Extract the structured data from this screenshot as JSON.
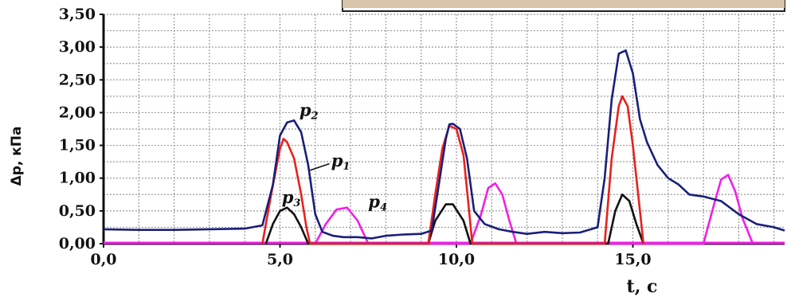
{
  "chart_data": {
    "type": "line",
    "title": "",
    "xlabel": "t, с",
    "ylabel": "Δp, кПа",
    "xlim": [
      0,
      19.3
    ],
    "ylim": [
      0,
      3.5
    ],
    "x_tick_labels": [
      "0,0",
      "5,0",
      "10,0",
      "15,0"
    ],
    "x_tick_values": [
      0,
      5,
      10,
      15
    ],
    "y_tick_labels": [
      "0,00",
      "0,50",
      "1,00",
      "1,50",
      "2,00",
      "2,50",
      "3,00",
      "3,50"
    ],
    "y_tick_values": [
      0,
      0.5,
      1.0,
      1.5,
      2.0,
      2.5,
      3.0,
      3.5
    ],
    "grid": true,
    "series": [
      {
        "name": "p2",
        "label_main": "p",
        "label_sub": "2",
        "color": "#1a1f7a",
        "x": [
          0,
          1,
          2,
          3,
          4,
          4.5,
          4.8,
          5.0,
          5.2,
          5.4,
          5.6,
          5.8,
          6.0,
          6.2,
          6.5,
          6.8,
          7.2,
          7.6,
          8.0,
          8.5,
          9.0,
          9.3,
          9.5,
          9.7,
          9.8,
          9.9,
          10.1,
          10.3,
          10.5,
          10.8,
          11.2,
          11.6,
          12.0,
          12.5,
          13.0,
          13.5,
          14.0,
          14.2,
          14.4,
          14.6,
          14.8,
          15.0,
          15.2,
          15.4,
          15.7,
          16.0,
          16.3,
          16.6,
          17.0,
          17.5,
          18.0,
          18.5,
          19.0,
          19.3
        ],
        "y": [
          0.22,
          0.21,
          0.21,
          0.22,
          0.23,
          0.28,
          0.9,
          1.65,
          1.85,
          1.88,
          1.7,
          1.2,
          0.45,
          0.18,
          0.12,
          0.1,
          0.1,
          0.08,
          0.12,
          0.14,
          0.15,
          0.2,
          0.9,
          1.6,
          1.82,
          1.83,
          1.75,
          1.3,
          0.5,
          0.3,
          0.22,
          0.18,
          0.15,
          0.18,
          0.16,
          0.17,
          0.25,
          1.0,
          2.2,
          2.9,
          2.95,
          2.6,
          1.9,
          1.55,
          1.2,
          1.0,
          0.9,
          0.75,
          0.72,
          0.65,
          0.45,
          0.3,
          0.25,
          0.2
        ]
      },
      {
        "name": "p1",
        "label_main": "p",
        "label_sub": "1",
        "color": "#e8211c",
        "x": [
          4.5,
          4.75,
          5.0,
          5.1,
          5.2,
          5.4,
          5.6,
          5.75,
          5.85,
          9.2,
          9.4,
          9.6,
          9.8,
          10.0,
          10.2,
          10.35,
          10.45,
          14.2,
          14.4,
          14.6,
          14.7,
          14.85,
          15.0,
          15.2,
          15.3
        ],
        "y": [
          0.0,
          0.75,
          1.45,
          1.6,
          1.55,
          1.3,
          0.75,
          0.25,
          0.0,
          0.0,
          0.75,
          1.45,
          1.8,
          1.75,
          1.35,
          0.55,
          0.0,
          0.0,
          1.3,
          2.1,
          2.25,
          2.1,
          1.5,
          0.5,
          0.0
        ]
      },
      {
        "name": "p3",
        "label_main": "p",
        "label_sub": "3",
        "color": "#111111",
        "x": [
          4.6,
          4.8,
          5.0,
          5.2,
          5.4,
          5.6,
          5.8,
          9.2,
          9.4,
          9.7,
          9.9,
          10.2,
          10.4,
          14.3,
          14.5,
          14.7,
          14.9,
          15.1,
          15.3
        ],
        "y": [
          0.0,
          0.3,
          0.5,
          0.55,
          0.45,
          0.25,
          0.0,
          0.0,
          0.35,
          0.6,
          0.6,
          0.35,
          0.0,
          0.0,
          0.5,
          0.75,
          0.65,
          0.3,
          0.0
        ]
      },
      {
        "name": "p4",
        "label_main": "p",
        "label_sub": "4",
        "color": "#f020e8",
        "x": [
          6.0,
          6.3,
          6.6,
          6.9,
          7.2,
          7.5,
          10.4,
          10.7,
          10.9,
          11.1,
          11.3,
          11.5,
          11.7,
          17.0,
          17.3,
          17.5,
          17.7,
          17.9,
          18.1,
          18.4
        ],
        "y": [
          0.0,
          0.3,
          0.52,
          0.55,
          0.35,
          0.0,
          0.0,
          0.45,
          0.85,
          0.92,
          0.75,
          0.35,
          0.0,
          0.0,
          0.6,
          0.98,
          1.05,
          0.8,
          0.4,
          0.0
        ]
      }
    ]
  }
}
